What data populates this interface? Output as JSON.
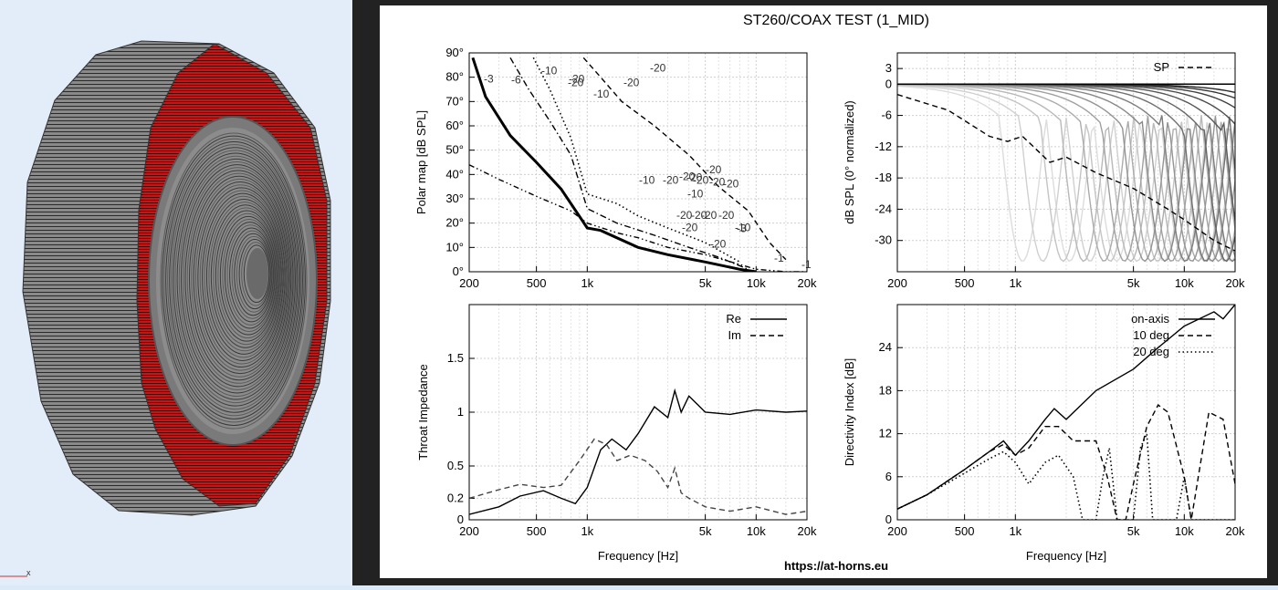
{
  "title": "ST260/COAX TEST (1_MID)",
  "footer_url": "https://at-horns.eu",
  "viewport": {
    "axis_label": "x"
  },
  "colors": {
    "horn_red": "#c01818",
    "horn_gray": "#808080",
    "background": "#e3edf9"
  },
  "chart_data": [
    {
      "type": "line",
      "id": "polar_map",
      "xlabel": "",
      "ylabel": "Polar map [dB SPL]",
      "x_ticks": [
        "200",
        "500",
        "1k",
        "5k",
        "10k",
        "20k"
      ],
      "y_ticks": [
        "0°",
        "10°",
        "20°",
        "30°",
        "40°",
        "50°",
        "60°",
        "70°",
        "80°",
        "90°"
      ],
      "xlim": [
        200,
        20000
      ],
      "ylim": [
        0,
        90
      ],
      "xscale": "log",
      "grid": true,
      "contour_labels": [
        "-3",
        "-6",
        "-10",
        "-20",
        "-10",
        "-20",
        "-20",
        "-20",
        "-10",
        "-20",
        "-20",
        "-20",
        "-20",
        "-20",
        "-20",
        "-20",
        "-10",
        "-20",
        "-20",
        "-20",
        "-20",
        "-20",
        "-10",
        "-20",
        "-3",
        "-1",
        "-1"
      ],
      "series": [
        {
          "level": "-1",
          "style": "dash-dot-dot",
          "x": [
            200,
            300,
            500,
            800,
            1000,
            1500,
            2000,
            3000,
            5000,
            8000,
            10000,
            15000,
            20000
          ],
          "y": [
            44,
            38,
            31,
            25,
            20,
            16,
            14,
            10,
            7,
            3,
            1,
            0,
            0
          ]
        },
        {
          "level": "-3",
          "style": "thick",
          "x": [
            210,
            250,
            350,
            500,
            700,
            1000,
            1200,
            2000,
            3000,
            5000,
            8000,
            10000
          ],
          "y": [
            88,
            72,
            56,
            45,
            34,
            18,
            17,
            10,
            7,
            4,
            1,
            0
          ]
        },
        {
          "level": "-6",
          "style": "dash-dot",
          "x": [
            350,
            450,
            600,
            800,
            1000,
            1500,
            2500,
            4000,
            6000,
            9000
          ],
          "y": [
            88,
            75,
            62,
            48,
            26,
            20,
            15,
            10,
            6,
            1
          ]
        },
        {
          "level": "-10",
          "style": "dotted",
          "x": [
            480,
            600,
            800,
            1000,
            1500,
            2000,
            3000,
            5000,
            8000
          ],
          "y": [
            88,
            75,
            55,
            32,
            28,
            23,
            18,
            12,
            4
          ]
        },
        {
          "level": "-20",
          "style": "dashed",
          "x": [
            950,
            1200,
            1600,
            2500,
            4000,
            6000,
            9000,
            12000,
            15000
          ],
          "y": [
            88,
            80,
            70,
            60,
            48,
            35,
            25,
            12,
            5
          ]
        }
      ]
    },
    {
      "type": "line",
      "id": "normalized_spl",
      "xlabel": "",
      "ylabel": "dB SPL (0° normalized)",
      "x_ticks": [
        "200",
        "500",
        "1k",
        "5k",
        "10k",
        "20k"
      ],
      "y_ticks": [
        "3",
        "0",
        "-6",
        "-12",
        "-18",
        "-24",
        "-30"
      ],
      "xlim": [
        200,
        20000
      ],
      "ylim": [
        -36,
        6
      ],
      "xscale": "log",
      "grid": true,
      "legend": [
        {
          "name": "SP",
          "style": "dashed"
        }
      ],
      "series": [
        {
          "name": "SP",
          "style": "dashed",
          "x": [
            200,
            400,
            700,
            900,
            1100,
            1600,
            2000,
            3000,
            5000,
            8000,
            10000,
            15000,
            20000
          ],
          "y": [
            -2,
            -5,
            -10,
            -11,
            -10,
            -15,
            -14,
            -17,
            -20,
            -24,
            -26,
            -30,
            -32
          ]
        }
      ]
    },
    {
      "type": "line",
      "id": "throat_impedance",
      "xlabel": "Frequency [Hz]",
      "ylabel": "Throat Impedance",
      "x_ticks": [
        "200",
        "500",
        "1k",
        "5k",
        "10k",
        "20k"
      ],
      "y_ticks": [
        "0",
        "0.2",
        "0.5",
        "1",
        "1.5"
      ],
      "xlim": [
        200,
        20000
      ],
      "ylim": [
        0,
        2
      ],
      "xscale": "log",
      "grid": true,
      "legend": [
        {
          "name": "Re",
          "style": "solid"
        },
        {
          "name": "Im",
          "style": "dashed"
        }
      ],
      "series": [
        {
          "name": "Re",
          "x": [
            200,
            300,
            400,
            550,
            700,
            850,
            1000,
            1200,
            1400,
            1700,
            2000,
            2500,
            3000,
            3300,
            3600,
            4000,
            5000,
            7000,
            10000,
            15000,
            20000
          ],
          "y": [
            0.05,
            0.12,
            0.22,
            0.27,
            0.2,
            0.15,
            0.3,
            0.65,
            0.75,
            0.65,
            0.8,
            1.05,
            0.95,
            1.2,
            1.0,
            1.15,
            1.0,
            0.98,
            1.02,
            1.0,
            1.01
          ]
        },
        {
          "name": "Im",
          "x": [
            200,
            300,
            400,
            550,
            700,
            900,
            1100,
            1300,
            1500,
            1800,
            2200,
            2600,
            3000,
            3300,
            3600,
            4000,
            5000,
            7000,
            10000,
            15000,
            20000
          ],
          "y": [
            0.2,
            0.28,
            0.33,
            0.3,
            0.32,
            0.55,
            0.75,
            0.7,
            0.55,
            0.6,
            0.55,
            0.45,
            0.3,
            0.48,
            0.25,
            0.2,
            0.12,
            0.08,
            0.12,
            0.05,
            0.08
          ]
        }
      ]
    },
    {
      "type": "line",
      "id": "directivity_index",
      "xlabel": "Frequency [Hz]",
      "ylabel": "Directivity Index [dB]",
      "x_ticks": [
        "200",
        "500",
        "1k",
        "5k",
        "10k",
        "20k"
      ],
      "y_ticks": [
        "0",
        "6",
        "12",
        "18",
        "24"
      ],
      "xlim": [
        200,
        20000
      ],
      "ylim": [
        0,
        30
      ],
      "xscale": "log",
      "grid": true,
      "legend": [
        {
          "name": "on-axis",
          "style": "solid"
        },
        {
          "name": "10 deg",
          "style": "dashed"
        },
        {
          "name": "20 deg",
          "style": "dotted"
        }
      ],
      "series": [
        {
          "name": "on-axis",
          "x": [
            200,
            300,
            500,
            700,
            850,
            1000,
            1200,
            1500,
            1700,
            2000,
            3000,
            5000,
            7000,
            10000,
            15000,
            17000,
            20000
          ],
          "y": [
            1.5,
            3.5,
            7,
            9.5,
            11,
            9,
            11,
            14,
            15.5,
            14,
            18,
            21,
            24,
            27,
            29,
            28,
            30
          ]
        },
        {
          "name": "10 deg",
          "x": [
            200,
            300,
            500,
            700,
            850,
            1000,
            1200,
            1500,
            1800,
            2200,
            3000,
            3500,
            4000,
            4500,
            5000,
            6000,
            7000,
            8000,
            10000,
            11000,
            14000,
            17000,
            20000
          ],
          "y": [
            1.5,
            3.5,
            7,
            9.5,
            10.5,
            9,
            10,
            13,
            13,
            11,
            11,
            6,
            0,
            0,
            5,
            13,
            16,
            15,
            6,
            0,
            15,
            14,
            5
          ]
        },
        {
          "name": "20 deg",
          "x": [
            200,
            300,
            500,
            700,
            850,
            1000,
            1200,
            1500,
            1800,
            2200,
            2500,
            3000,
            3300,
            3600,
            4000,
            4500,
            5000,
            5500,
            6000,
            6500,
            7000,
            8000,
            9000,
            10000,
            11000,
            12000,
            14000,
            17000,
            20000
          ],
          "y": [
            1.5,
            3.5,
            6.5,
            8.5,
            9.5,
            8,
            5,
            8,
            9,
            6,
            0,
            0,
            6,
            10,
            0,
            0,
            0,
            10,
            12,
            0,
            0,
            0,
            0,
            6,
            0,
            0,
            0,
            0,
            0
          ]
        }
      ]
    }
  ]
}
